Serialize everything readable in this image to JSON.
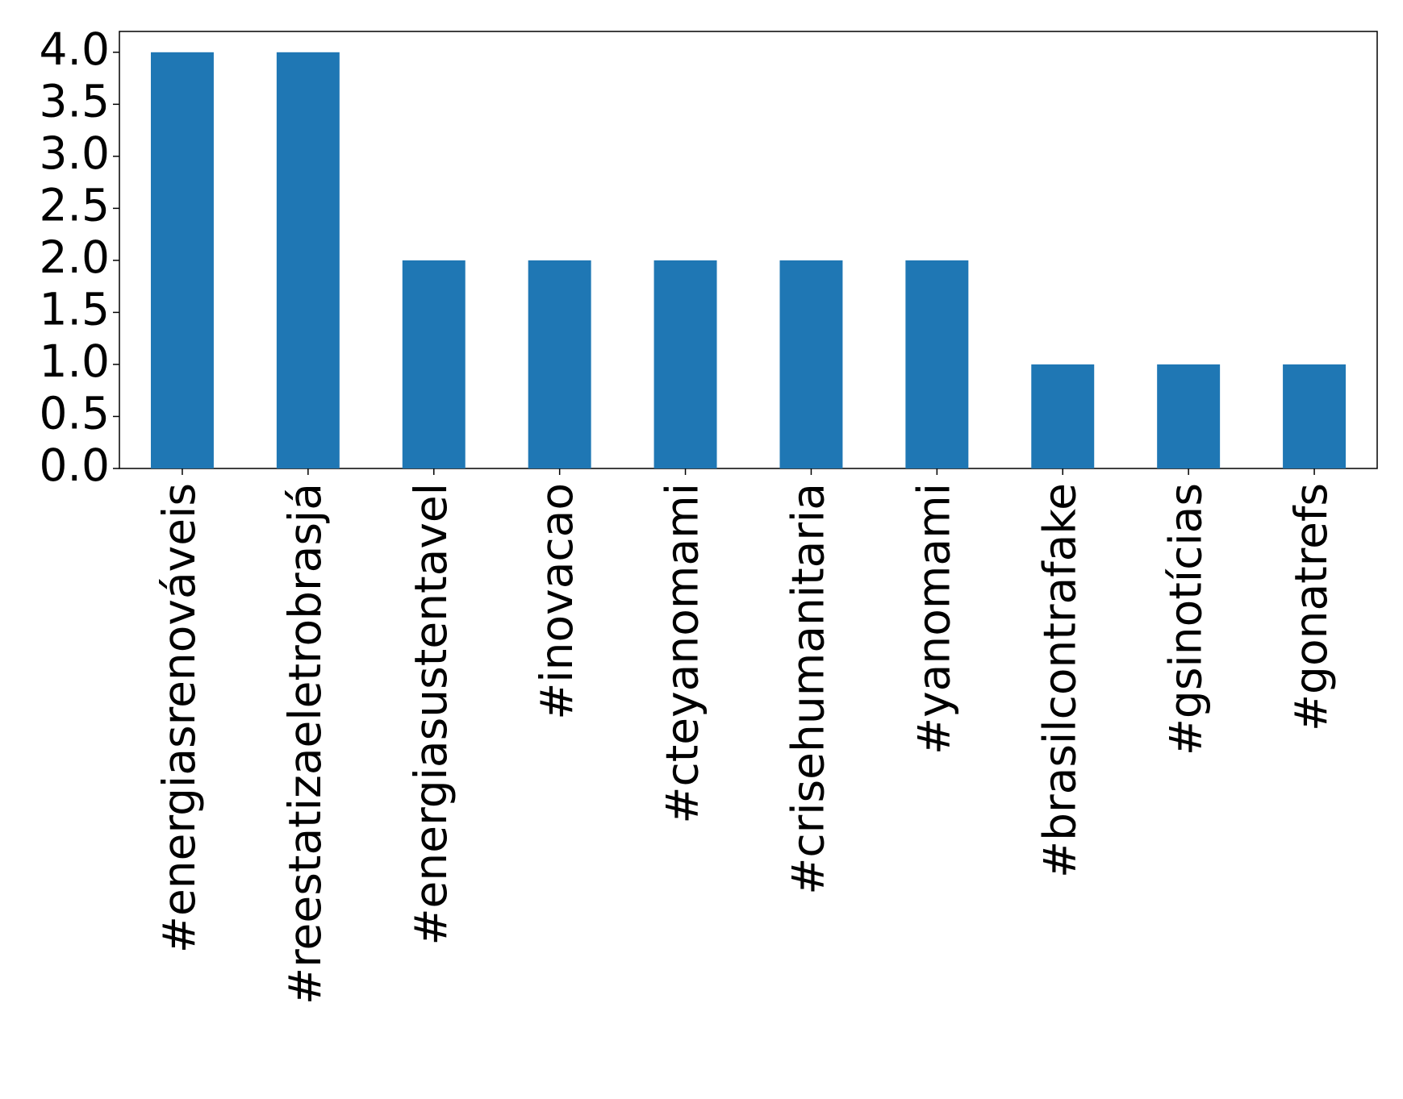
{
  "chart_data": {
    "type": "bar",
    "categories": [
      "#energiasrenováveis",
      "#reestatizaeletrobrasjá",
      "#energiasustentavel",
      "#inovacao",
      "#cteyanomami",
      "#crisehumanitaria",
      "#yanomami",
      "#brasilcontrafake",
      "#gsinotícias",
      "#gonatrefs"
    ],
    "values": [
      4,
      4,
      2,
      2,
      2,
      2,
      2,
      1,
      1,
      1
    ],
    "color": "#1f77b4",
    "ylim": [
      0,
      4.2
    ],
    "yticks": [
      {
        "value": 0,
        "label": "0.0"
      },
      {
        "value": 0.5,
        "label": "0.5"
      },
      {
        "value": 1,
        "label": "1.0"
      },
      {
        "value": 1.5,
        "label": "1.5"
      },
      {
        "value": 2,
        "label": "2.0"
      },
      {
        "value": 2.5,
        "label": "2.5"
      },
      {
        "value": 3,
        "label": "3.0"
      },
      {
        "value": 3.5,
        "label": "3.5"
      },
      {
        "value": 4,
        "label": "4.0"
      }
    ],
    "grid": false
  }
}
